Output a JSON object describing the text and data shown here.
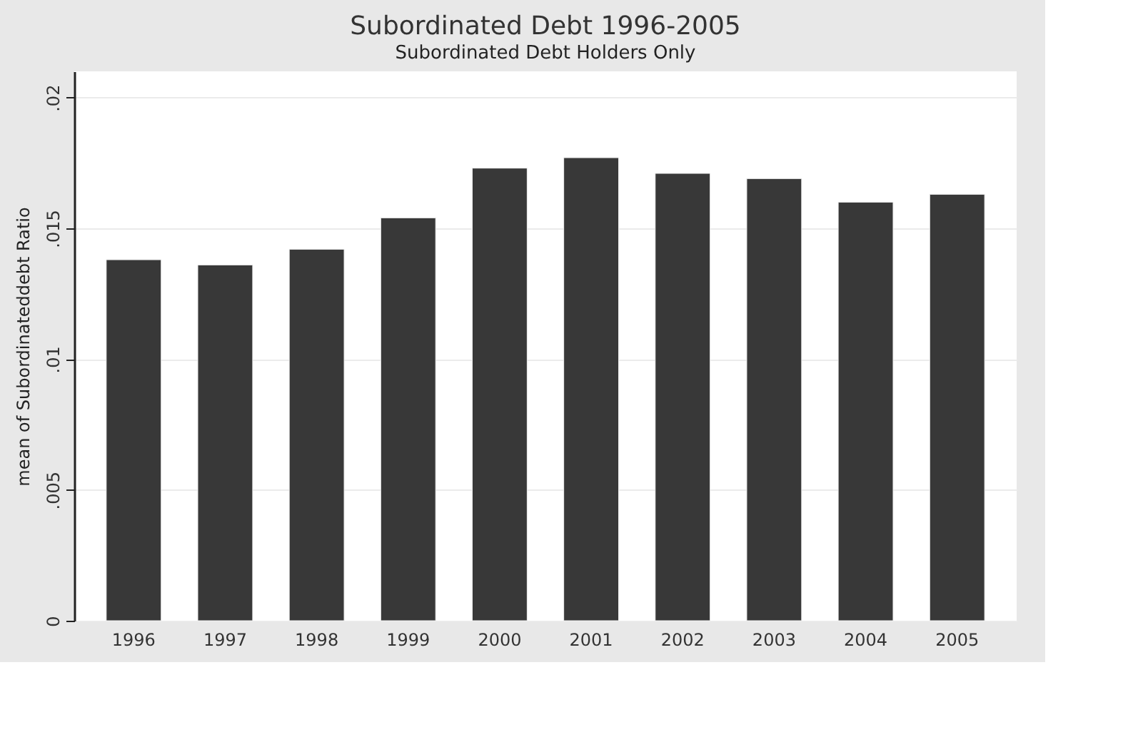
{
  "chart_data": {
    "type": "bar",
    "title": "Subordinated Debt 1996-2005",
    "subtitle": "Subordinated Debt Holders Only",
    "ylabel": "mean of Subordinateddebt Ratio",
    "categories": [
      "1996",
      "1997",
      "1998",
      "1999",
      "2000",
      "2001",
      "2002",
      "2003",
      "2004",
      "2005"
    ],
    "values": [
      0.0138,
      0.0136,
      0.0142,
      0.0154,
      0.0173,
      0.0177,
      0.0171,
      0.0169,
      0.016,
      0.0163
    ],
    "color": "#383838",
    "ylim": [
      0,
      0.021
    ],
    "yticks": [
      0,
      {
        "value": 0.005,
        "label": ".005"
      },
      {
        "value": 0.01,
        "label": ".01"
      },
      {
        "value": 0.015,
        "label": ".015"
      },
      {
        "value": 0.02,
        "label": ".02"
      }
    ],
    "grid": "y"
  }
}
